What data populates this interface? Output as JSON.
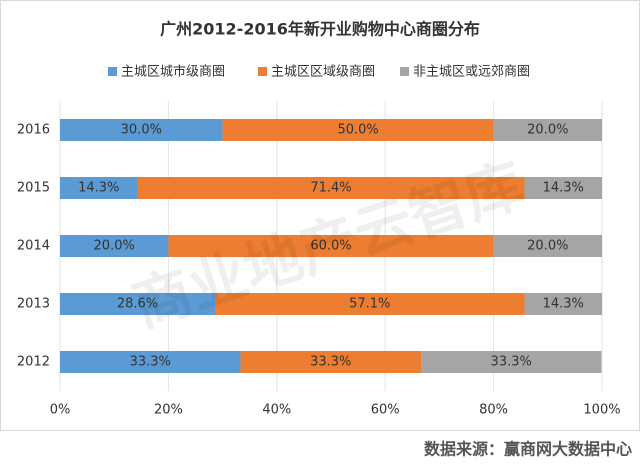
{
  "chart_data": {
    "type": "stacked-bar-horizontal",
    "title": "广州2012-2016年新开业购物中心商圈分布",
    "categories": [
      "2016",
      "2015",
      "2014",
      "2013",
      "2012"
    ],
    "series": [
      {
        "name": "主城区城市级商圈",
        "color": "#5b9bd5",
        "values": [
          30.0,
          14.3,
          20.0,
          28.6,
          33.3
        ],
        "value_labels": [
          "30.0%",
          "14.3%",
          "20.0%",
          "28.6%",
          "33.3%"
        ]
      },
      {
        "name": "主城区区域级商圈",
        "color": "#ed7d31",
        "values": [
          50.0,
          71.4,
          60.0,
          57.1,
          33.3
        ],
        "value_labels": [
          "50.0%",
          "71.4%",
          "60.0%",
          "57.1%",
          "33.3%"
        ]
      },
      {
        "name": "非主城区或远郊商圈",
        "color": "#a5a5a5",
        "values": [
          20.0,
          14.3,
          20.0,
          14.3,
          33.3
        ],
        "value_labels": [
          "20.0%",
          "14.3%",
          "20.0%",
          "14.3%",
          "33.3%"
        ]
      }
    ],
    "xlim": [
      0,
      100
    ],
    "xticks": [
      {
        "value": 0,
        "label": "0%"
      },
      {
        "value": 20,
        "label": "20%"
      },
      {
        "value": 40,
        "label": "40%"
      },
      {
        "value": 60,
        "label": "60%"
      },
      {
        "value": 80,
        "label": "80%"
      },
      {
        "value": 100,
        "label": "100%"
      }
    ],
    "grid": true,
    "legend": "top",
    "watermark": "商业地产云智库",
    "source": "数据来源：赢商网大数据中心"
  }
}
